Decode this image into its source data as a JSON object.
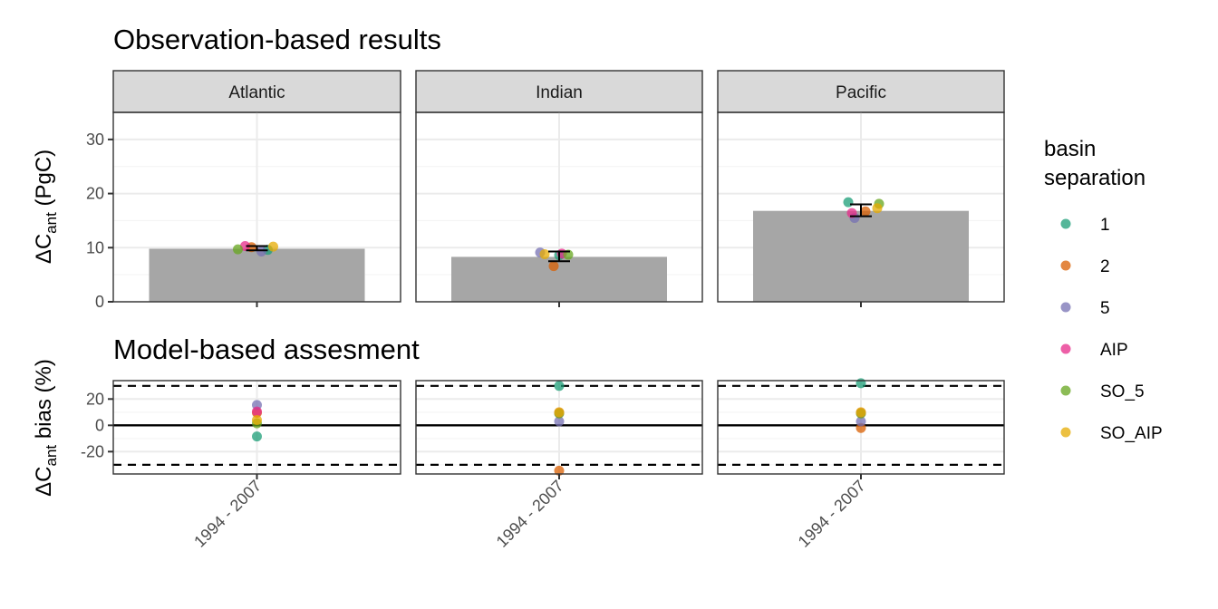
{
  "chart_data": [
    {
      "type": "bar",
      "title": "Observation-based results",
      "ylabel_parts": {
        "prefix": "ΔC",
        "sub": "ant",
        "suffix": " (PgC)"
      },
      "ylim": [
        0,
        35
      ],
      "yticks": [
        0,
        10,
        20,
        30
      ],
      "x_category": "1994 - 2007",
      "grid": true,
      "facets": [
        {
          "name": "Atlantic",
          "bar": 9.8,
          "errorbar": [
            9.5,
            10.3
          ],
          "points": [
            {
              "series": "1",
              "y": 9.6
            },
            {
              "series": "2",
              "y": 10.1
            },
            {
              "series": "5",
              "y": 9.3
            },
            {
              "series": "AIP",
              "y": 10.3
            },
            {
              "series": "SO_5",
              "y": 9.7
            },
            {
              "series": "SO_AIP",
              "y": 10.2
            }
          ]
        },
        {
          "name": "Indian",
          "bar": 8.3,
          "errorbar": [
            7.5,
            9.3
          ],
          "points": [
            {
              "series": "1",
              "y": 8.6
            },
            {
              "series": "2",
              "y": 6.6
            },
            {
              "series": "5",
              "y": 9.1
            },
            {
              "series": "AIP",
              "y": 8.9
            },
            {
              "series": "SO_5",
              "y": 8.7
            },
            {
              "series": "SO_AIP",
              "y": 8.8
            }
          ]
        },
        {
          "name": "Pacific",
          "bar": 16.8,
          "errorbar": [
            15.8,
            18.0
          ],
          "points": [
            {
              "series": "1",
              "y": 18.4
            },
            {
              "series": "2",
              "y": 16.7
            },
            {
              "series": "5",
              "y": 15.5
            },
            {
              "series": "AIP",
              "y": 16.4
            },
            {
              "series": "SO_5",
              "y": 18.1
            },
            {
              "series": "SO_AIP",
              "y": 17.3
            }
          ]
        }
      ]
    },
    {
      "type": "scatter",
      "title": "Model-based assesment",
      "ylabel_parts": {
        "prefix": "ΔC",
        "sub": "ant",
        "suffix": " bias (%)"
      },
      "ylim": [
        -37,
        34
      ],
      "yticks": [
        -20,
        0,
        20
      ],
      "ytick_labels": [
        "-20",
        "0",
        "20"
      ],
      "hlines": {
        "solid": 0,
        "dashed": [
          -30,
          30
        ]
      },
      "x_category": "1994 - 2007",
      "grid": true,
      "facets": [
        {
          "name": "Atlantic",
          "points": [
            {
              "series": "1",
              "y": -8.5
            },
            {
              "series": "2",
              "y": 9.5
            },
            {
              "series": "5",
              "y": 15.5
            },
            {
              "series": "AIP",
              "y": 10.5
            },
            {
              "series": "SO_5",
              "y": 1.5
            },
            {
              "series": "SO_AIP",
              "y": 4.0
            }
          ]
        },
        {
          "name": "Indian",
          "points": [
            {
              "series": "1",
              "y": 30.0
            },
            {
              "series": "2",
              "y": -34.5
            },
            {
              "series": "5",
              "y": 3.0
            },
            {
              "series": "AIP",
              "y": 9.5
            },
            {
              "series": "SO_5",
              "y": 9.0
            },
            {
              "series": "SO_AIP",
              "y": 10.0
            }
          ]
        },
        {
          "name": "Pacific",
          "points": [
            {
              "series": "1",
              "y": 32.0
            },
            {
              "series": "2",
              "y": -2.0
            },
            {
              "series": "5",
              "y": 3.0
            },
            {
              "series": "AIP",
              "y": 9.5
            },
            {
              "series": "SO_5",
              "y": 9.0
            },
            {
              "series": "SO_AIP",
              "y": 10.0
            }
          ]
        }
      ]
    }
  ],
  "legend": {
    "title_lines": [
      "basin",
      "separation"
    ],
    "placement": "right",
    "items": [
      {
        "label": "1",
        "color": "#1b9e77"
      },
      {
        "label": "2",
        "color": "#d95f02"
      },
      {
        "label": "5",
        "color": "#7570b3"
      },
      {
        "label": "AIP",
        "color": "#e7298a"
      },
      {
        "label": "SO_5",
        "color": "#66a61e"
      },
      {
        "label": "SO_AIP",
        "color": "#e6ab02"
      }
    ]
  },
  "colors": {
    "bar_fill": "#a6a6a6",
    "strip_fill": "#d9d9d9",
    "panel_border": "#333333"
  }
}
